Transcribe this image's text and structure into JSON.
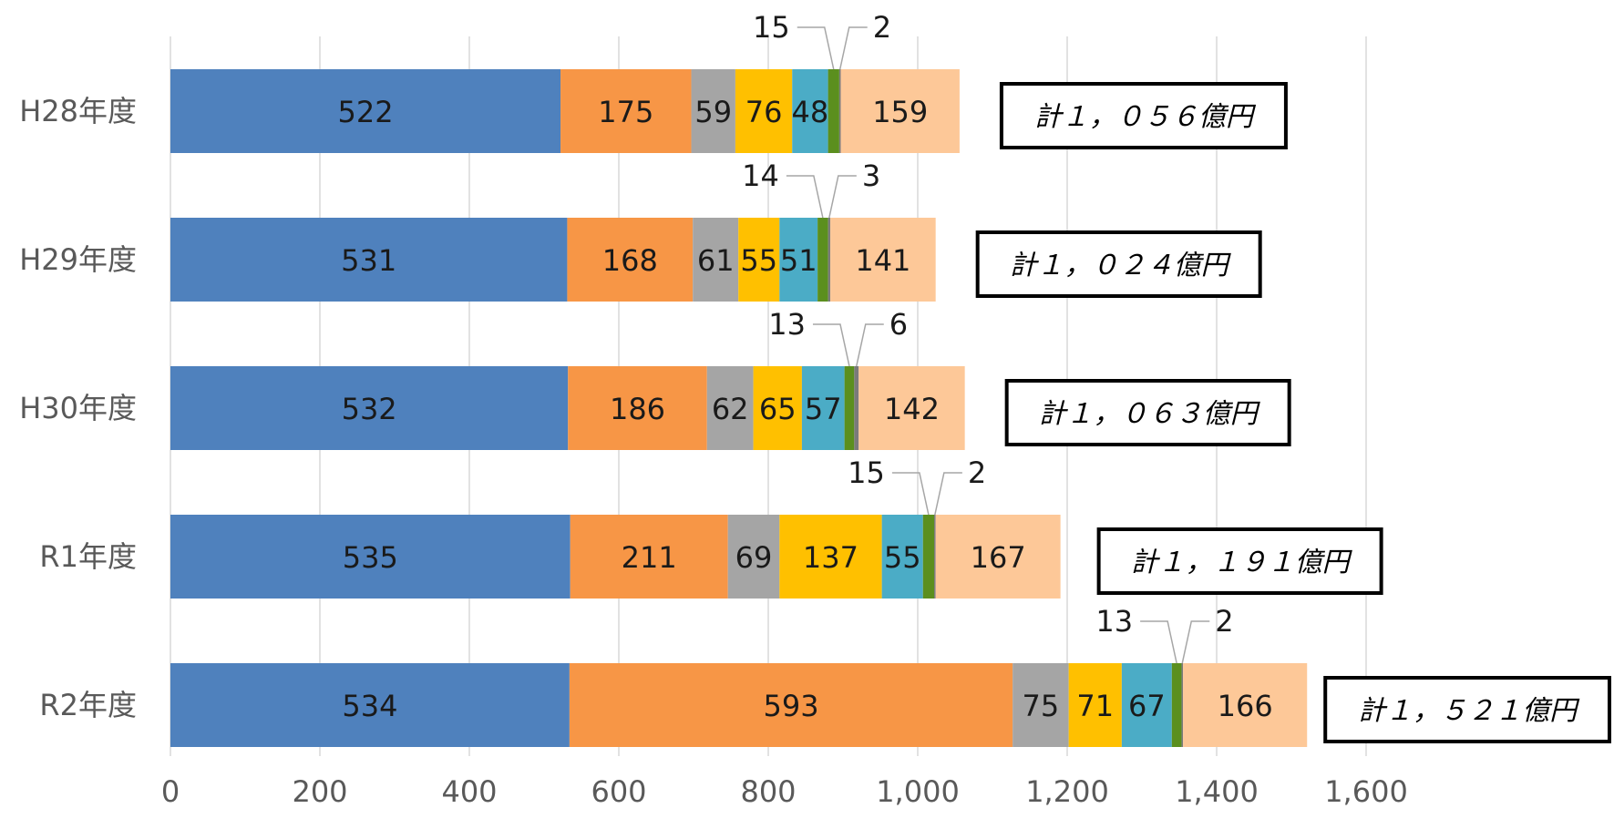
{
  "chart_data": {
    "type": "bar",
    "orientation": "horizontal",
    "stacked": true,
    "categories": [
      "H28年度",
      "H29年度",
      "H30年度",
      "R1年度",
      "R2年度"
    ],
    "series": [
      {
        "color": "#4f81bd",
        "values": [
          522,
          531,
          532,
          535,
          534
        ]
      },
      {
        "color": "#f79646",
        "values": [
          175,
          168,
          186,
          211,
          593
        ]
      },
      {
        "color": "#a5a5a5",
        "values": [
          59,
          61,
          62,
          69,
          75
        ]
      },
      {
        "color": "#ffc000",
        "values": [
          76,
          55,
          65,
          137,
          71
        ]
      },
      {
        "color": "#4bacc6",
        "values": [
          48,
          51,
          57,
          55,
          67
        ]
      },
      {
        "color": "#5b8f1e",
        "values": [
          15,
          14,
          13,
          15,
          13
        ]
      },
      {
        "color": "#7a7a7a",
        "values": [
          2,
          3,
          6,
          2,
          2
        ]
      },
      {
        "color": "#fdc898",
        "values": [
          159,
          141,
          142,
          167,
          166
        ]
      }
    ],
    "totals": [
      "計１，０５６億円",
      "計１，０２４億円",
      "計１，０６３億円",
      "計１，１９１億円",
      "計１，５２１億円"
    ],
    "xlim": [
      0,
      1600
    ],
    "xticks": [
      0,
      200,
      400,
      600,
      800,
      1000,
      1200,
      1400,
      1600
    ],
    "xtick_labels": [
      "0",
      "200",
      "400",
      "600",
      "800",
      "1,000",
      "1,200",
      "1,400",
      "1,600"
    ],
    "grid": true,
    "legend": "none",
    "title": "",
    "xlabel": "",
    "ylabel": ""
  }
}
